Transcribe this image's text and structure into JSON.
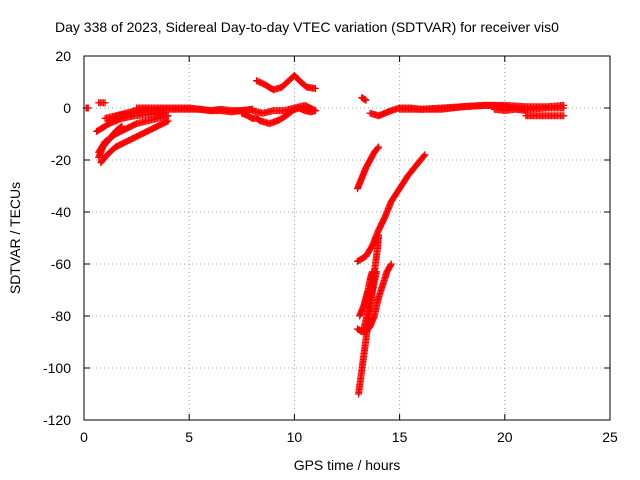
{
  "chart_data": {
    "type": "scatter",
    "title": "Day 338 of 2023, Sidereal Day-to-day VTEC variation (SDTVAR) for receiver vis0",
    "xlabel": "GPS time / hours",
    "ylabel": "SDTVAR / TECUs",
    "xlim": [
      0,
      25
    ],
    "ylim": [
      -120,
      20
    ],
    "xticks": [
      0,
      5,
      10,
      15,
      20,
      25
    ],
    "yticks": [
      -120,
      -100,
      -80,
      -60,
      -40,
      -20,
      0,
      20
    ],
    "grid": true,
    "legend": "none",
    "marker": "plus",
    "color": "#ff0000",
    "segments": [
      {
        "x": [
          0.1,
          0.2
        ],
        "y": [
          0,
          0
        ]
      },
      {
        "x": [
          0.7,
          1.0
        ],
        "y": [
          2,
          2
        ]
      },
      {
        "x": [
          0.6,
          1.2,
          1.8,
          2.4,
          3.0,
          3.8
        ],
        "y": [
          -9,
          -6,
          -4,
          -3,
          -2.5,
          -2
        ]
      },
      {
        "x": [
          0.7,
          1.0,
          1.5,
          2.0,
          2.5,
          3.0,
          3.5,
          4.0
        ],
        "y": [
          -17,
          -13,
          -10,
          -8,
          -6,
          -5,
          -4,
          -3
        ]
      },
      {
        "x": [
          0.8,
          1.1,
          1.5,
          2.0,
          2.5,
          3.0,
          3.5,
          4.0
        ],
        "y": [
          -21,
          -18,
          -15,
          -13,
          -11,
          -9,
          -7,
          -5
        ]
      },
      {
        "x": [
          0.7,
          0.9,
          1.2,
          1.5,
          1.8
        ],
        "y": [
          -19,
          -15,
          -12,
          -9,
          -7
        ]
      },
      {
        "x": [
          1.2,
          1.6,
          2.0,
          2.5,
          3.0
        ],
        "y": [
          -5,
          -3,
          -2,
          -1,
          -0.5
        ]
      },
      {
        "x": [
          1.0,
          1.5,
          2.0,
          2.5,
          3.0,
          3.5,
          4.0,
          4.5,
          5.0,
          5.5,
          6.0,
          6.5,
          7.0,
          7.5,
          8.0
        ],
        "y": [
          -4,
          -3,
          -2,
          -1,
          -1,
          -0.5,
          -0.5,
          -0.5,
          -0.5,
          -0.5,
          -1,
          -0.5,
          -1,
          -1,
          -0.5
        ]
      },
      {
        "x": [
          2.5,
          3.0,
          3.5,
          4.0,
          4.5,
          5.0,
          5.5,
          6.0,
          6.5,
          7.0,
          7.5,
          8.0
        ],
        "y": [
          0,
          0,
          0,
          0,
          0,
          0,
          -0.5,
          -1,
          -1,
          -1.5,
          -1,
          -0.5
        ]
      },
      {
        "x": [
          7.5,
          7.8,
          8.0,
          8.2,
          8.4,
          8.6,
          8.8,
          9.0,
          9.3,
          9.6,
          9.9,
          10.2,
          10.5,
          10.8,
          11.0
        ],
        "y": [
          -2,
          -3,
          -4,
          -4,
          -5,
          -5.5,
          -6,
          -5.5,
          -4.5,
          -3,
          -1,
          0,
          -1,
          -1.5,
          -1
        ]
      },
      {
        "x": [
          8.0,
          8.5,
          9.0,
          9.5,
          10.0,
          10.5,
          11.0
        ],
        "y": [
          -1,
          -2,
          -1,
          -1,
          0,
          1,
          -1
        ]
      },
      {
        "x": [
          8.2,
          8.6,
          9.0,
          9.4,
          9.8,
          10.0,
          10.3,
          10.6,
          11.0
        ],
        "y": [
          10.5,
          9,
          7,
          8,
          11,
          12.5,
          10,
          8,
          7.5
        ]
      },
      {
        "x": [
          13.2,
          13.4
        ],
        "y": [
          4,
          3
        ]
      },
      {
        "x": [
          13.6,
          13.8,
          14.0,
          14.3,
          14.6,
          15.0,
          15.5,
          16.0,
          17.0,
          18.0,
          19.0,
          20.0,
          21.0,
          22.0,
          22.8
        ],
        "y": [
          -2,
          -2.5,
          -3,
          -2,
          -1,
          0,
          0,
          -0.5,
          0,
          0.5,
          1,
          1,
          0.5,
          0.5,
          1
        ]
      },
      {
        "x": [
          15.0,
          16.0,
          17.0,
          18.0,
          19.0,
          19.5,
          20.0,
          21.0,
          22.0,
          22.8
        ],
        "y": [
          -0.5,
          -0.5,
          -0.5,
          0.5,
          1,
          1,
          0.5,
          -0.5,
          0,
          0
        ]
      },
      {
        "x": [
          21.0,
          21.5,
          22.0,
          22.5,
          22.8
        ],
        "y": [
          -3,
          -3,
          -3,
          -3,
          -3
        ]
      },
      {
        "x": [
          19.5,
          20.0,
          20.5,
          21.0
        ],
        "y": [
          -0.5,
          -1,
          -0.5,
          -1
        ]
      },
      {
        "x": [
          13.0,
          13.2,
          13.4,
          13.6,
          13.8,
          14.0
        ],
        "y": [
          -31,
          -27,
          -23,
          -20,
          -17,
          -15
        ]
      },
      {
        "x": [
          13.0,
          13.4,
          13.7,
          14.0,
          14.3,
          14.6,
          15.0,
          15.4,
          15.8,
          16.2
        ],
        "y": [
          -59,
          -57,
          -53,
          -47,
          -42,
          -36,
          -31,
          -26,
          -22,
          -18
        ]
      },
      {
        "x": [
          13.0,
          13.2,
          13.4,
          13.6,
          13.8,
          14.0,
          14.2,
          14.4,
          14.6
        ],
        "y": [
          -85,
          -86,
          -86,
          -84,
          -80,
          -73,
          -68,
          -63,
          -60
        ]
      },
      {
        "x": [
          13.05,
          13.15,
          13.25,
          13.35,
          13.45,
          13.55,
          13.65,
          13.75,
          13.85,
          13.95,
          14.0
        ],
        "y": [
          -110,
          -104,
          -98,
          -92,
          -86,
          -80,
          -74,
          -67,
          -60,
          -54,
          -49
        ]
      },
      {
        "x": [
          13.3,
          13.45,
          13.6,
          13.75,
          13.9
        ],
        "y": [
          -85,
          -80,
          -74,
          -69,
          -63
        ]
      },
      {
        "x": [
          13.1,
          13.2,
          13.3,
          13.4,
          13.5,
          13.6,
          13.7
        ],
        "y": [
          -80,
          -78,
          -76,
          -73,
          -70,
          -66,
          -63
        ]
      }
    ]
  }
}
